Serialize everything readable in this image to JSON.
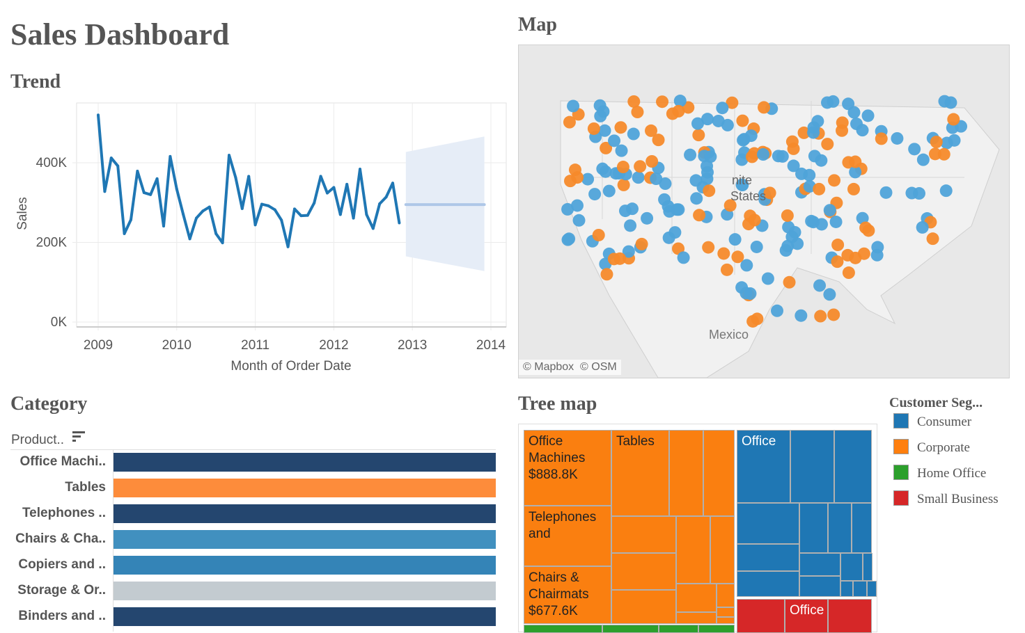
{
  "title": "Sales  Dashboard",
  "trend": {
    "heading": "Trend",
    "chart_data": {
      "type": "line",
      "xlabel": "Month of Order Date",
      "ylabel": "Sales",
      "x_ticks": [
        "2009",
        "2010",
        "2011",
        "2012",
        "2013",
        "2014"
      ],
      "y_ticks": [
        "0K",
        "200K",
        "400K"
      ],
      "ylim": [
        0,
        520000
      ],
      "xlim": [
        "2008-12",
        "2014-01"
      ],
      "grid": true,
      "series": [
        {
          "start": "2009-01",
          "frequency": "monthly",
          "color": "#1f77b4",
          "values": [
            520,
            328,
            412,
            392,
            222,
            257,
            379,
            325,
            320,
            360,
            241,
            416,
            334,
            270,
            209,
            261,
            279,
            289,
            222,
            199,
            419,
            363,
            285,
            366,
            244,
            296,
            292,
            282,
            256,
            189,
            284,
            267,
            268,
            299,
            366,
            324,
            338,
            270,
            346,
            261,
            384,
            270,
            235,
            297,
            314,
            349,
            249
          ]
        }
      ],
      "values_unit": "K",
      "forecast": {
        "start": "2012-12",
        "end": "2013-12",
        "value": 295,
        "upper": [
          427,
          466
        ],
        "lower": [
          165,
          128
        ],
        "color": "#aec7e8"
      }
    }
  },
  "map": {
    "heading": "Map",
    "labels": {
      "us1": "nite",
      "us2": "States",
      "mexico": "Mexico"
    },
    "attribution": [
      "© Mapbox",
      "© OSM"
    ],
    "colors": {
      "consumer": "#4fa3d9",
      "corporate": "#f58a2b"
    }
  },
  "category": {
    "heading": "Category",
    "field": "Product..",
    "sort_icon": "sort-icon",
    "items": [
      {
        "label": "Office Machi..",
        "color": "#24466f"
      },
      {
        "label": "Tables",
        "color": "#fd8c3b"
      },
      {
        "label": "Telephones ..",
        "color": "#24466f"
      },
      {
        "label": "Chairs & Cha..",
        "color": "#4190bf"
      },
      {
        "label": "Copiers and ..",
        "color": "#3484b7"
      },
      {
        "label": "Storage & Or..",
        "color": "#c3cbd0"
      },
      {
        "label": "Binders and ..",
        "color": "#24466f"
      }
    ]
  },
  "treemap": {
    "heading": "Tree  map",
    "labels": {
      "office_machines": "Office\nMachines\n$888.8K",
      "tables": "Tables",
      "telephones": "Telephones\nand",
      "chairs": "Chairs &\nChairmats\n$677.6K",
      "consumer_office": "Office",
      "small_office": "Office"
    }
  },
  "legend": {
    "title": "Customer  Seg...",
    "items": [
      {
        "label": "Consumer",
        "color": "#1f77b4"
      },
      {
        "label": "Corporate",
        "color": "#ff7f0e"
      },
      {
        "label": "Home  Office",
        "color": "#2ca02c"
      },
      {
        "label": "Small  Business",
        "color": "#d62728"
      }
    ]
  }
}
